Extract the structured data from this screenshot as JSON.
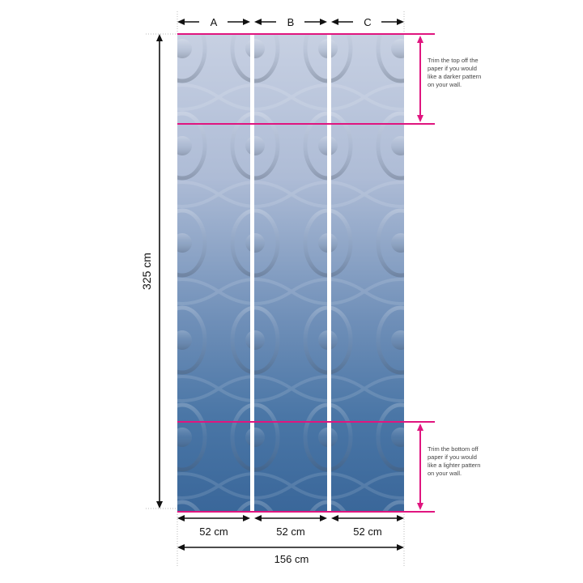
{
  "panels": [
    {
      "label": "A",
      "width": "52 cm"
    },
    {
      "label": "B",
      "width": "52 cm"
    },
    {
      "label": "C",
      "width": "52 cm"
    }
  ],
  "height_label": "325 cm",
  "total_width_label": "156 cm",
  "notes": {
    "top": "Trim the top off the paper if you would like a darker pattern on your wall.",
    "bottom": "Trim the bottom off paper if you would like a lighter pattern on your wall."
  },
  "colors": {
    "accent": "#e0157f",
    "top": "#c5cee0",
    "bottom": "#3d6c9e",
    "pattern": "#5a6a80"
  }
}
